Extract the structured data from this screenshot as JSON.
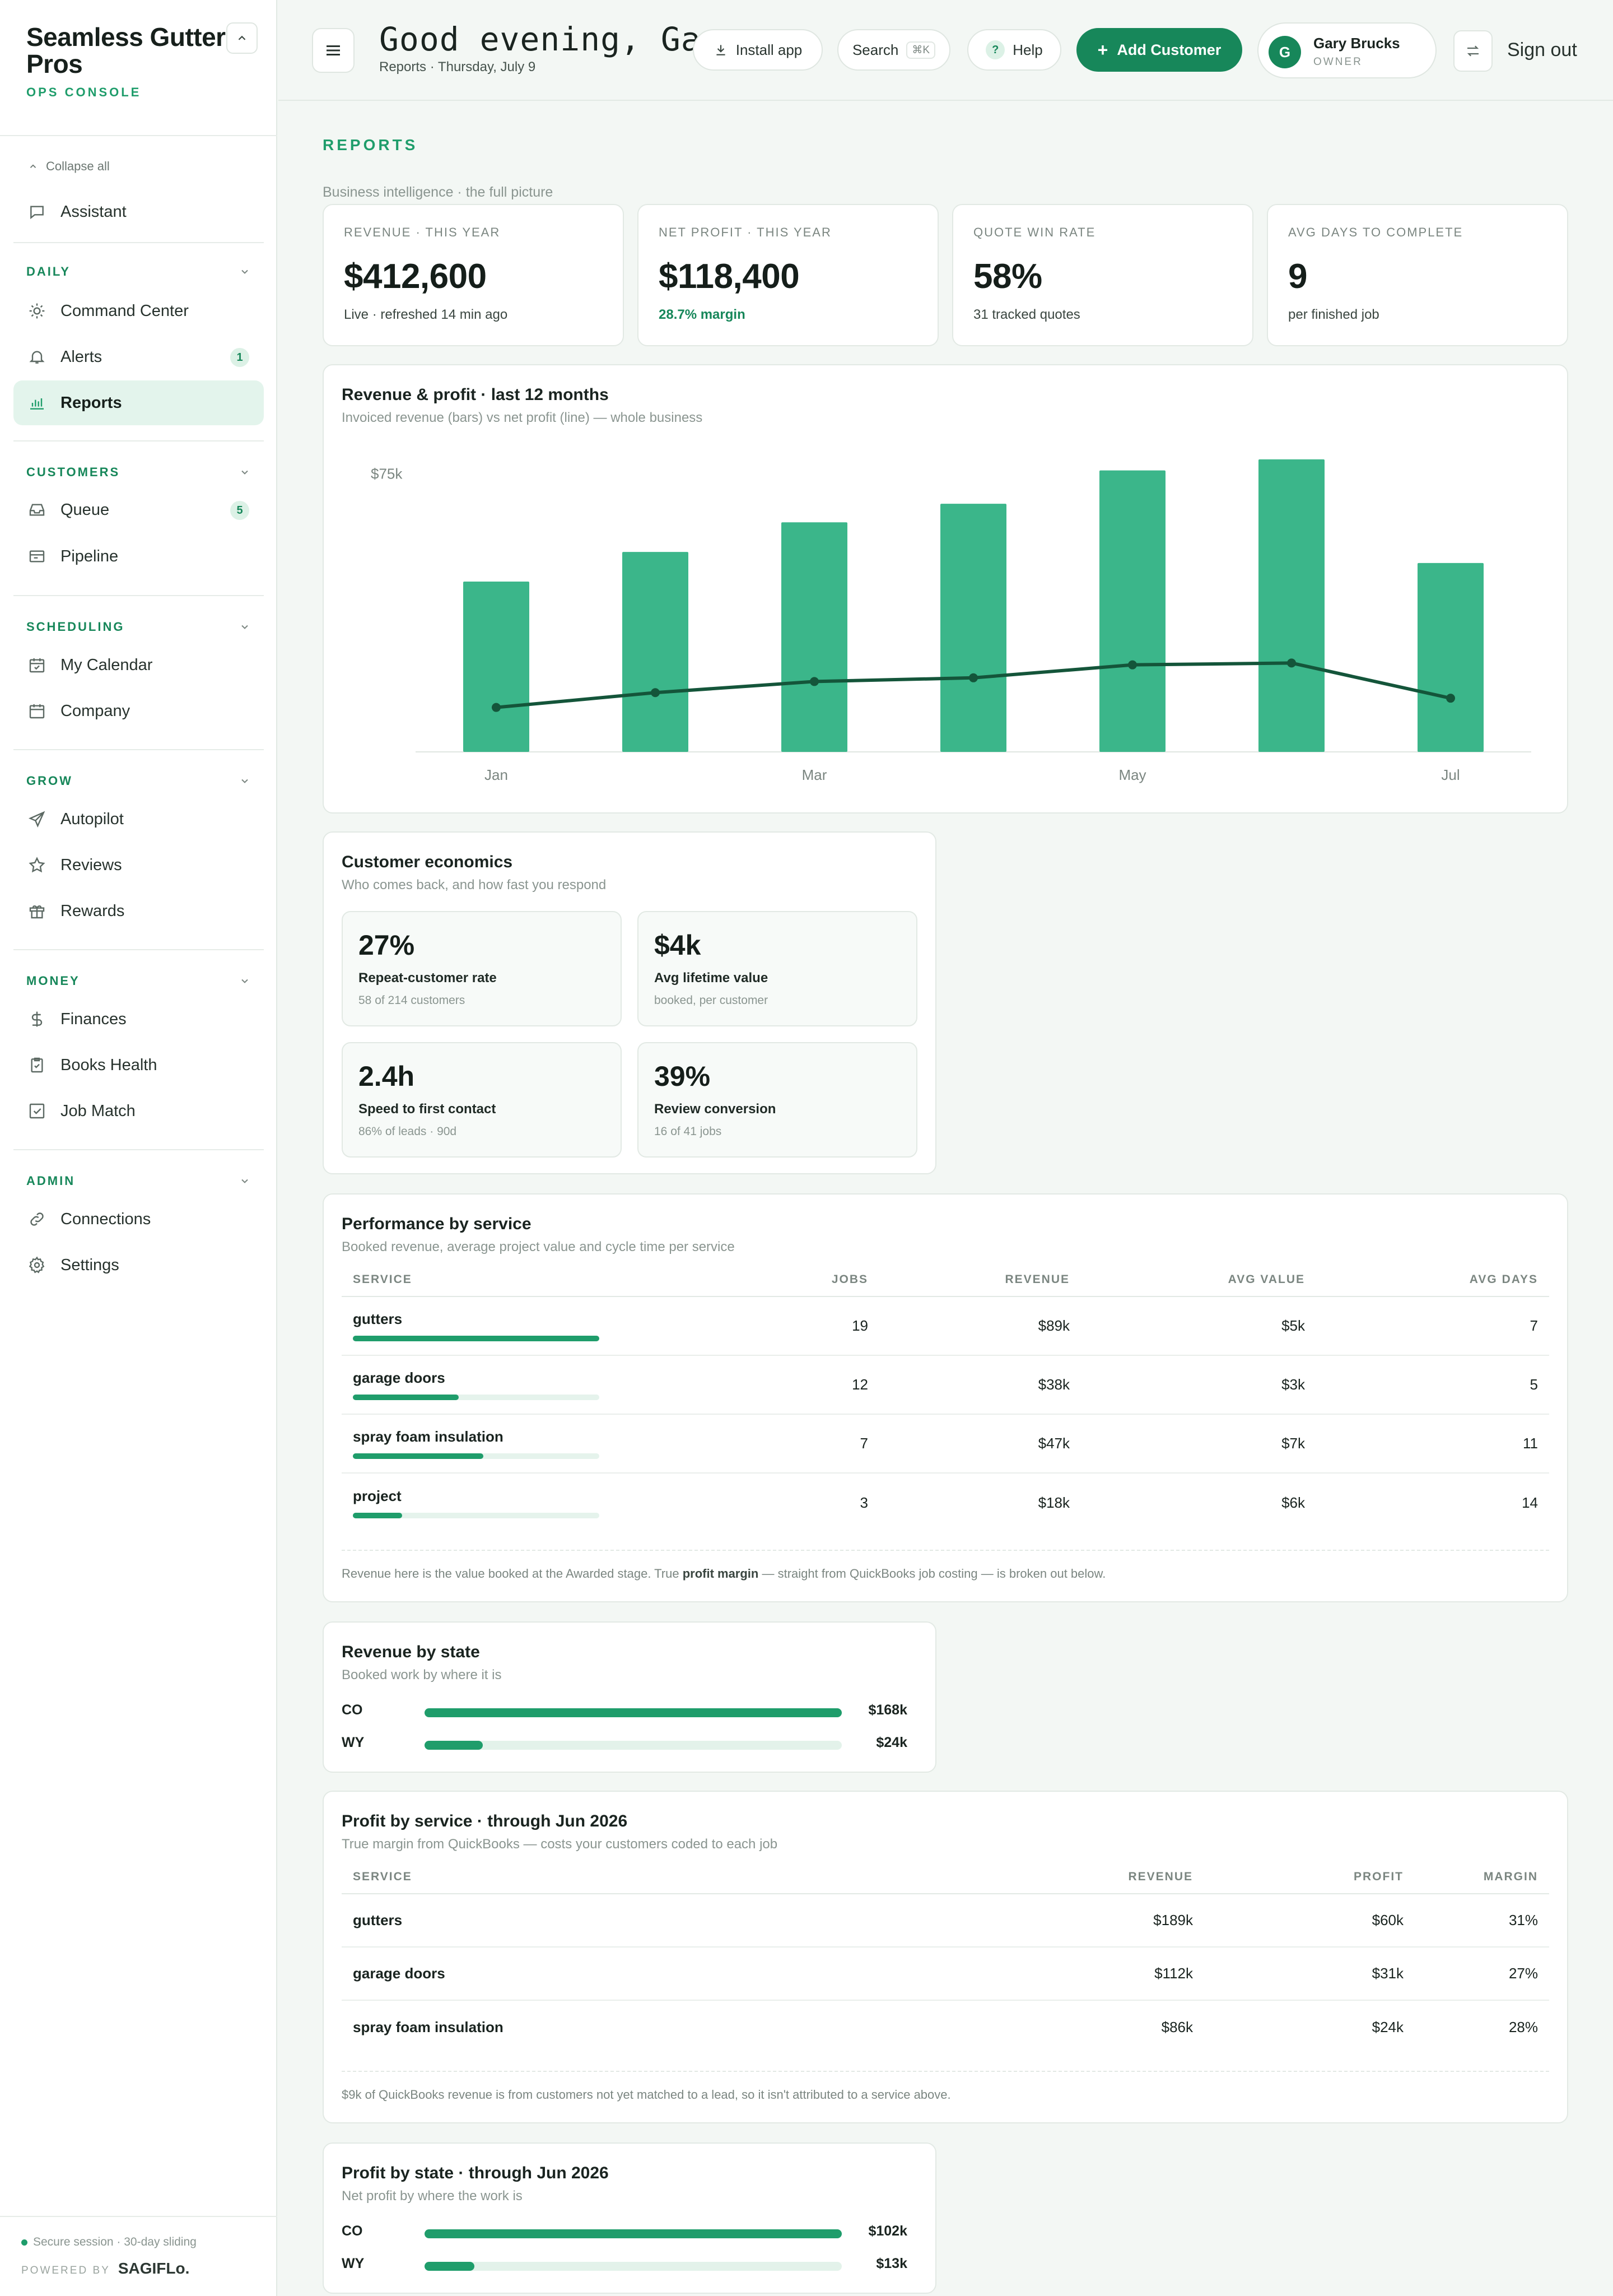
{
  "brand": {
    "name": "Seamless Gutter Pros",
    "sub": "OPS CONSOLE"
  },
  "sidebar": {
    "collapse_all": "Collapse all",
    "assistant": "Assistant",
    "sections": {
      "daily": "DAILY",
      "customers": "CUSTOMERS",
      "scheduling": "SCHEDULING",
      "grow": "GROW",
      "money": "MONEY",
      "admin": "ADMIN"
    },
    "items": {
      "command_center": "Command Center",
      "alerts": "Alerts",
      "alerts_badge": "1",
      "reports": "Reports",
      "queue": "Queue",
      "queue_badge": "5",
      "pipeline": "Pipeline",
      "my_calendar": "My Calendar",
      "company": "Company",
      "autopilot": "Autopilot",
      "reviews": "Reviews",
      "rewards": "Rewards",
      "finances": "Finances",
      "books_health": "Books Health",
      "job_match": "Job Match",
      "connections": "Connections",
      "settings": "Settings"
    },
    "footer": "Secure session · 30-day sliding",
    "powered_by": "POWERED BY",
    "powered_brand": "SAGIFLo."
  },
  "topbar": {
    "greeting": "Good evening, Gary",
    "subtitle": "Reports · Thursday, July 9",
    "install": "Install app",
    "search": "Search",
    "search_kbd": "⌘K",
    "help": "Help",
    "help_glyph": "?",
    "add_customer": "Add Customer",
    "user_initial": "G",
    "user_name": "Gary Brucks",
    "user_role": "OWNER",
    "sign_out": "Sign out"
  },
  "page": {
    "kicker": "REPORTS",
    "subtitle": "Business intelligence · the full picture"
  },
  "kpis": [
    {
      "label": "REVENUE · THIS YEAR",
      "value": "$412,600",
      "foot": "Live · refreshed 14 min ago"
    },
    {
      "label": "NET PROFIT · THIS YEAR",
      "value": "$118,400",
      "foot": "28.7% margin"
    },
    {
      "label": "QUOTE WIN RATE",
      "value": "58%",
      "foot": "31 tracked quotes"
    },
    {
      "label": "AVG DAYS TO COMPLETE",
      "value": "9",
      "foot": "per finished job"
    }
  ],
  "revenue_chart": {
    "title": "Revenue & profit · last 12 months",
    "desc": "Invoiced revenue (bars) vs net profit (line) — whole business",
    "y_tick": "$75k"
  },
  "chart_data": {
    "type": "bar",
    "title": "Revenue & profit · last 12 months",
    "categories": [
      "Jan",
      "Feb",
      "Mar",
      "Apr",
      "May",
      "Jun",
      "Jul"
    ],
    "x_tick_labels": [
      "Jan",
      "",
      "Mar",
      "",
      "May",
      "",
      "Jul"
    ],
    "series": [
      {
        "name": "Invoiced revenue",
        "kind": "bar",
        "color": "#3bb68a",
        "values": [
          46000,
          54000,
          62000,
          67000,
          76000,
          79000,
          51000
        ]
      },
      {
        "name": "Net profit",
        "kind": "line",
        "color": "#14553a",
        "values": [
          12000,
          16000,
          19000,
          20000,
          23500,
          24000,
          14500
        ]
      }
    ],
    "ylim": [
      0,
      82000
    ],
    "y_ticks": [
      75000
    ],
    "grid": false
  },
  "econ": {
    "title": "Customer economics",
    "desc": "Who comes back, and how fast you respond",
    "tiles": [
      {
        "value": "27%",
        "label": "Repeat-customer rate",
        "sub": "58 of 214 customers"
      },
      {
        "value": "$4k",
        "label": "Avg lifetime value",
        "sub": "booked, per customer"
      },
      {
        "value": "2.4h",
        "label": "Speed to first contact",
        "sub": "86% of leads · 90d"
      },
      {
        "value": "39%",
        "label": "Review conversion",
        "sub": "16 of 41 jobs"
      }
    ]
  },
  "perf": {
    "title": "Performance by service",
    "desc": "Booked revenue, average project value and cycle time per service",
    "headers": [
      "SERVICE",
      "JOBS",
      "REVENUE",
      "AVG VALUE",
      "AVG DAYS"
    ],
    "rows": [
      {
        "service": "gutters",
        "jobs": "19",
        "revenue": "$89k",
        "avg_value": "$5k",
        "avg_days": "7",
        "share": 1.0
      },
      {
        "service": "garage doors",
        "jobs": "12",
        "revenue": "$38k",
        "avg_value": "$3k",
        "avg_days": "5",
        "share": 0.43
      },
      {
        "service": "spray foam insulation",
        "jobs": "7",
        "revenue": "$47k",
        "avg_value": "$7k",
        "avg_days": "11",
        "share": 0.53
      },
      {
        "service": "project",
        "jobs": "3",
        "revenue": "$18k",
        "avg_value": "$6k",
        "avg_days": "14",
        "share": 0.2
      }
    ],
    "note_a": "Revenue here is the value booked at the Awarded stage. True ",
    "note_b": "profit margin",
    "note_c": " — straight from QuickBooks job costing — is broken out below."
  },
  "rev_state": {
    "title": "Revenue by state",
    "desc": "Booked work by where it is",
    "rows": [
      {
        "state": "CO",
        "value": "$168k",
        "share": 1.0
      },
      {
        "state": "WY",
        "value": "$24k",
        "share": 0.14
      }
    ]
  },
  "profit_service": {
    "title": "Profit by service · through Jun 2026",
    "desc": "True margin from QuickBooks — costs your customers coded to each job",
    "headers": [
      "SERVICE",
      "REVENUE",
      "PROFIT",
      "MARGIN"
    ],
    "rows": [
      {
        "service": "gutters",
        "revenue": "$189k",
        "profit": "$60k",
        "margin": "31%"
      },
      {
        "service": "garage doors",
        "revenue": "$112k",
        "profit": "$31k",
        "margin": "27%"
      },
      {
        "service": "spray foam insulation",
        "revenue": "$86k",
        "profit": "$24k",
        "margin": "28%"
      }
    ],
    "note": "$9k of QuickBooks revenue is from customers not yet matched to a lead, so it isn't attributed to a service above."
  },
  "profit_state": {
    "title": "Profit by state · through Jun 2026",
    "desc": "Net profit by where the work is",
    "rows": [
      {
        "state": "CO",
        "value": "$102k",
        "share": 1.0
      },
      {
        "state": "WY",
        "value": "$13k",
        "share": 0.12
      }
    ]
  }
}
